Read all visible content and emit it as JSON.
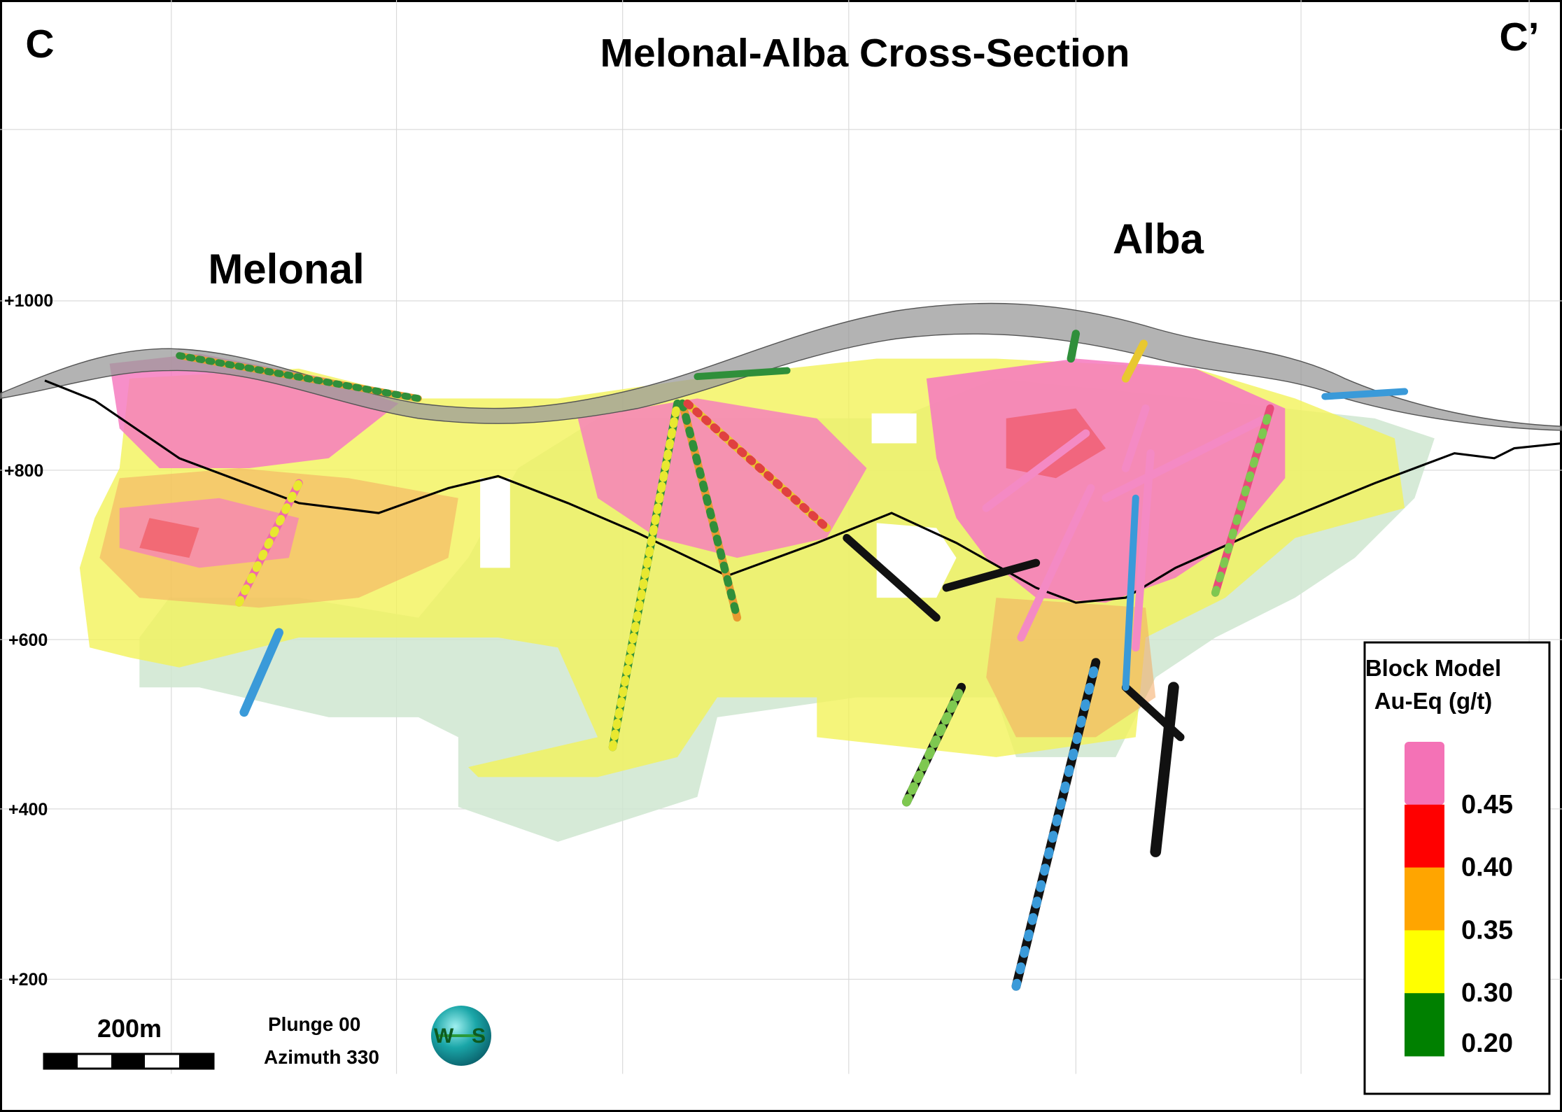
{
  "corners": {
    "left": "C",
    "right": "C’"
  },
  "title": "Melonal-Alba Cross-Section",
  "zones": {
    "melonal": "Melonal",
    "alba": "Alba"
  },
  "elevations": [
    "+1000",
    "+800",
    "+600",
    "+400",
    "+200"
  ],
  "scale_bar": "200m",
  "view": {
    "plunge": "Plunge 00",
    "azimuth": "Azimuth 330"
  },
  "compass": {
    "west": "W",
    "south": "S"
  },
  "legend": {
    "title_lines": [
      "Block Model",
      "Au-Eq (g/t)"
    ],
    "levels": [
      {
        "label": "0.45",
        "color": "#f472b6"
      },
      {
        "label": "0.40",
        "color": "#ff0000"
      },
      {
        "label": "0.35",
        "color": "#ffa500"
      },
      {
        "label": "0.30",
        "color": "#ffff00"
      },
      {
        "label": "0.20",
        "color": "#008000"
      }
    ]
  }
}
